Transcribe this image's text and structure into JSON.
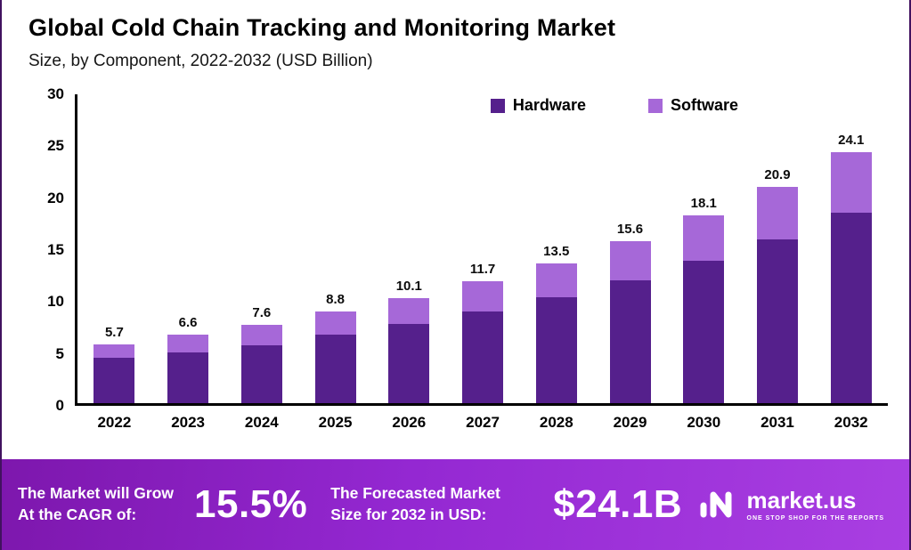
{
  "title": "Global Cold Chain Tracking and Monitoring Market",
  "subtitle": "Size, by Component, 2022-2032 (USD Billion)",
  "chart_data": {
    "type": "bar",
    "stacked": true,
    "title": "Global Cold Chain Tracking and Monitoring Market Size, by Component, 2022-2032 (USD Billion)",
    "categories": [
      "2022",
      "2023",
      "2024",
      "2025",
      "2026",
      "2027",
      "2028",
      "2029",
      "2030",
      "2031",
      "2032"
    ],
    "series": [
      {
        "name": "Hardware",
        "color": "#55208c",
        "values": [
          4.4,
          4.9,
          5.6,
          6.6,
          7.6,
          8.8,
          10.2,
          11.8,
          13.7,
          15.8,
          18.3
        ]
      },
      {
        "name": "Software",
        "color": "#a668d8",
        "values": [
          1.3,
          1.7,
          2.0,
          2.2,
          2.5,
          2.9,
          3.3,
          3.8,
          4.4,
          5.1,
          5.8
        ]
      }
    ],
    "totals": [
      5.7,
      6.6,
      7.6,
      8.8,
      10.1,
      11.7,
      13.5,
      15.6,
      18.1,
      20.9,
      24.1
    ],
    "xlabel": "",
    "ylabel": "",
    "ylim": [
      0,
      30
    ],
    "yticks": [
      0,
      5,
      10,
      15,
      20,
      25,
      30
    ],
    "grid": false,
    "legend_position": "top"
  },
  "footer": {
    "cagr_label_line1": "The Market will Grow",
    "cagr_label_line2": "At the CAGR of:",
    "cagr_value": "15.5%",
    "forecast_label_line1": "The Forecasted Market",
    "forecast_label_line2": "Size for 2032 in USD:",
    "forecast_value": "$24.1B",
    "brand": "market.us",
    "brand_tagline": "ONE STOP SHOP FOR THE REPORTS"
  }
}
